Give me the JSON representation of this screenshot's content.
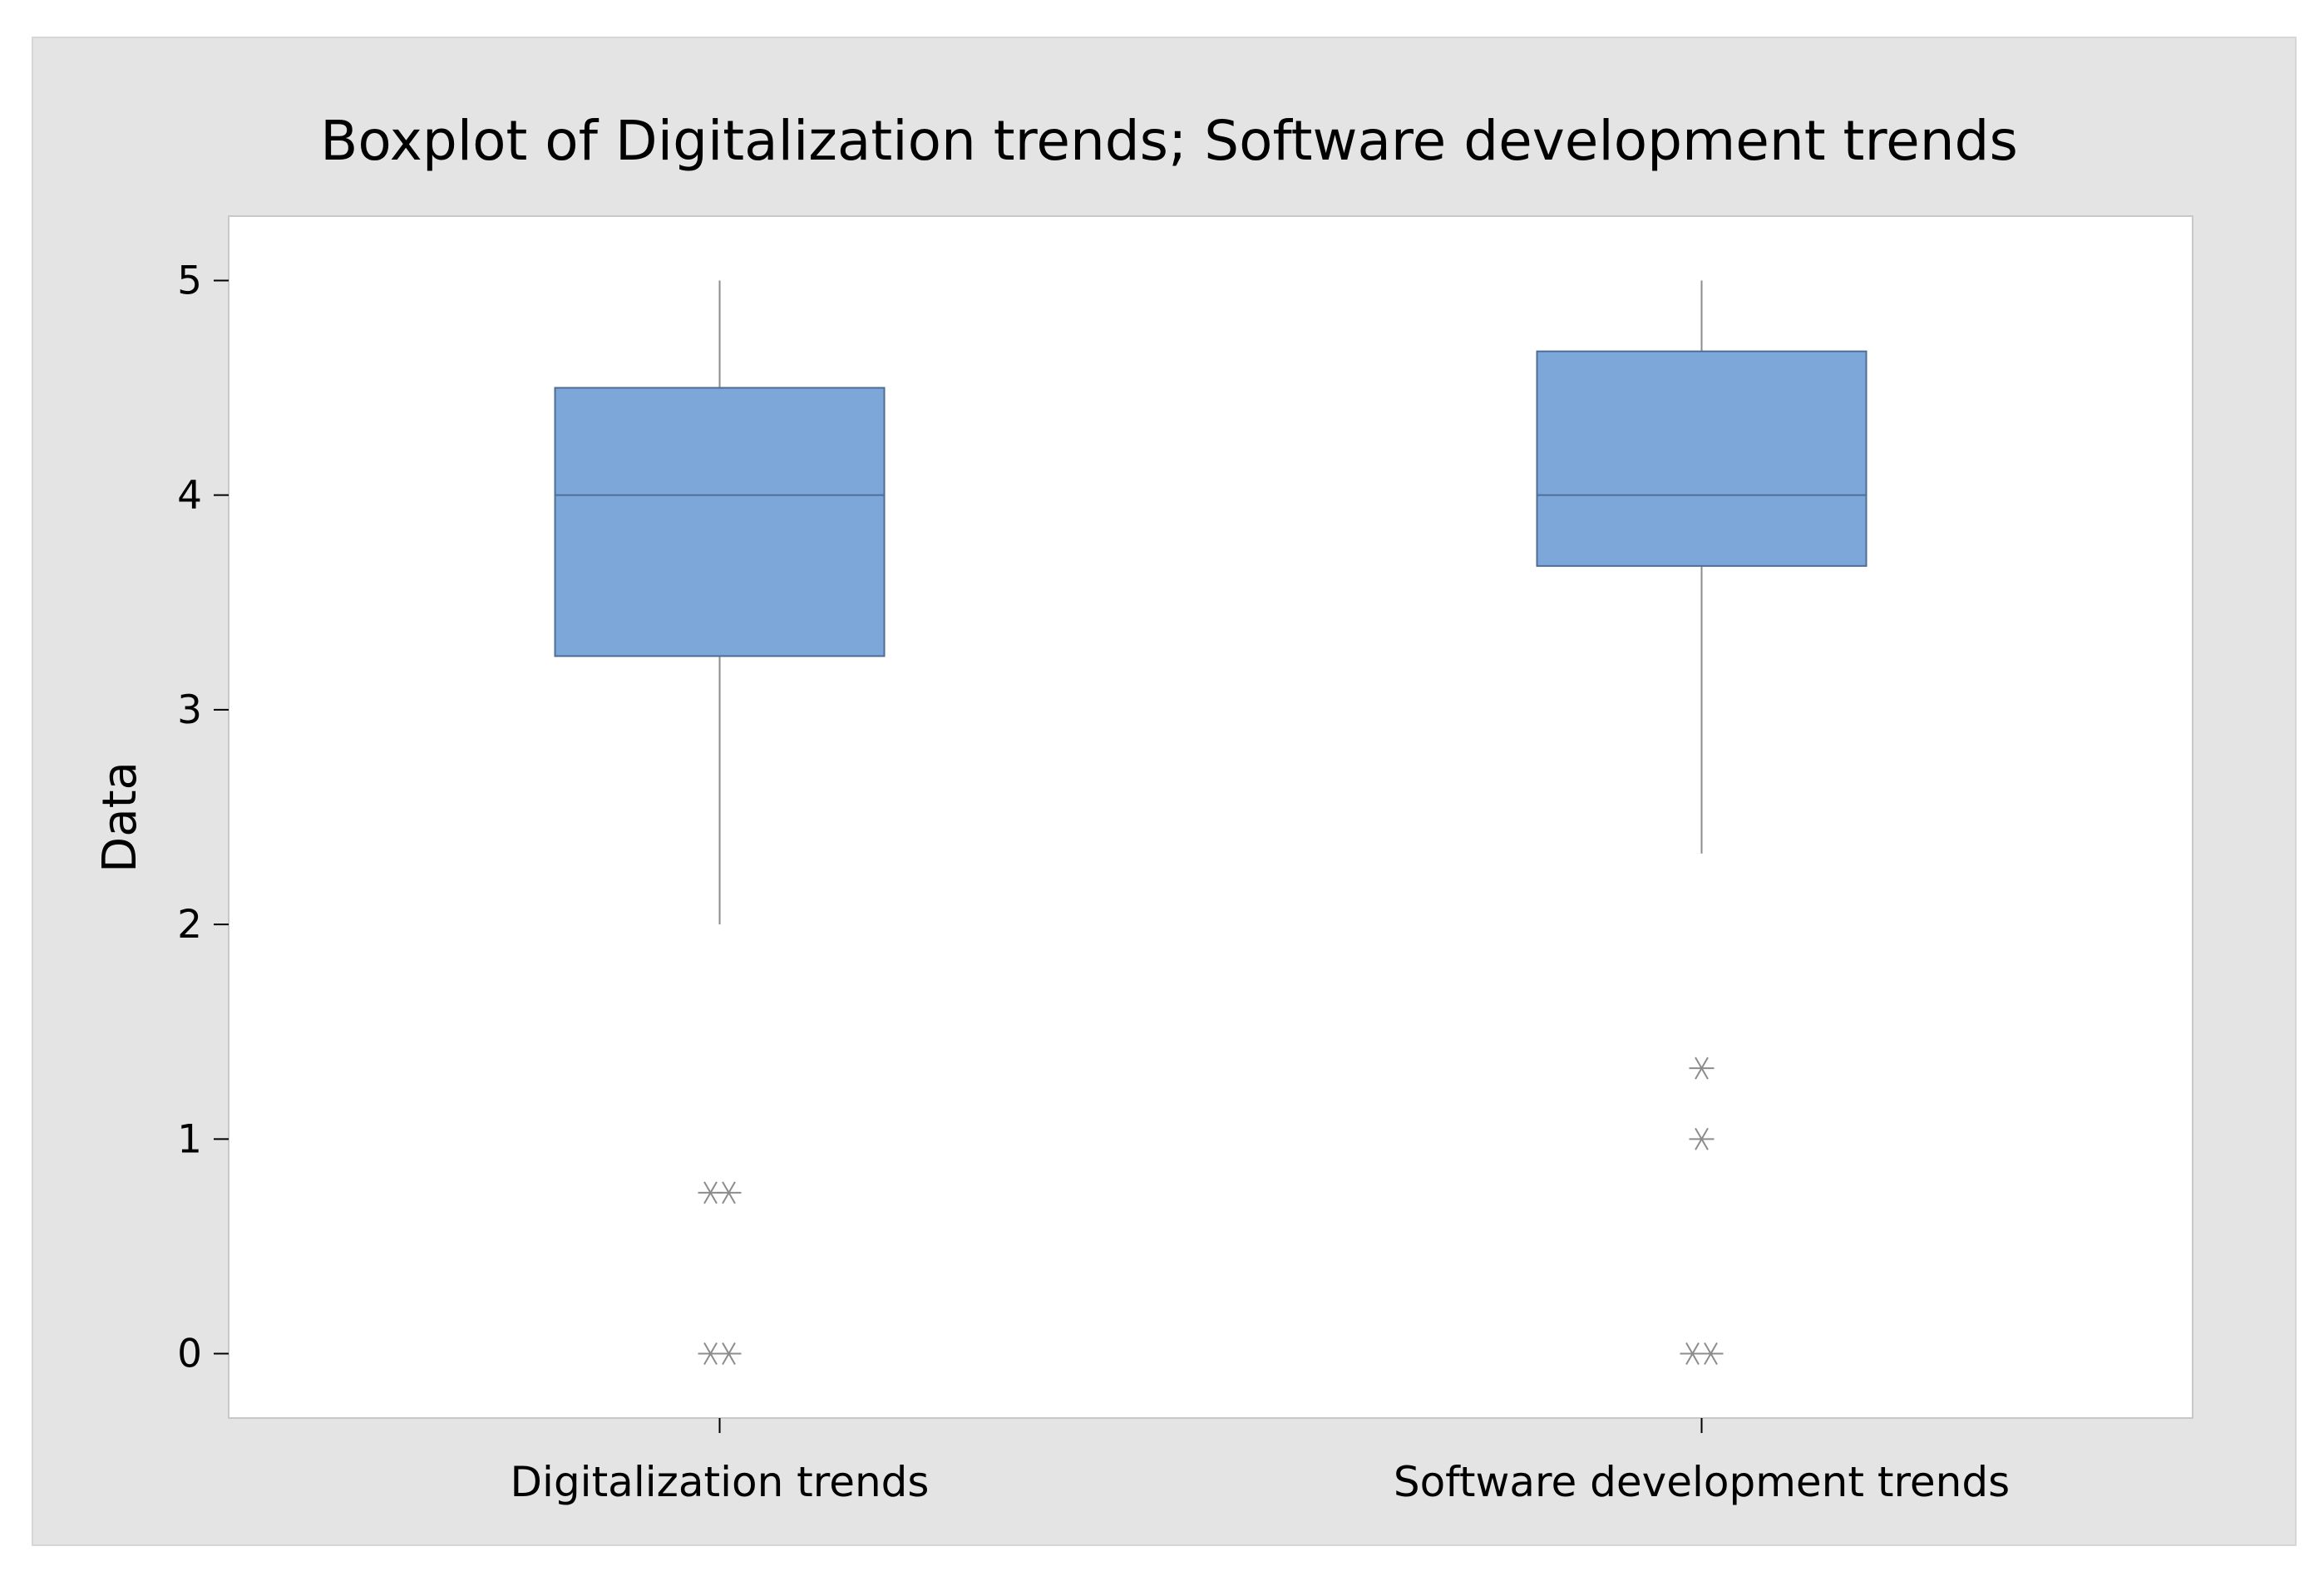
{
  "chart_data": {
    "type": "boxplot",
    "title": "Boxplot of Digitalization trends; Software development trends",
    "xlabel": "",
    "ylabel": "Data",
    "ylim": [
      -0.3,
      5.3
    ],
    "yticks": [
      "0",
      "1",
      "2",
      "3",
      "4",
      "5"
    ],
    "grid": false,
    "colors": {
      "box_fill": "#7da7d9",
      "box_stroke": "#4f6e96",
      "whisker": "#8c8c8c",
      "outlier": "#8c8c8c",
      "plot_bg": "#ffffff",
      "frame_bg": "#e4e4e4"
    },
    "series": [
      {
        "name": "Digitalization trends",
        "whisker_low": 2.0,
        "q1": 3.25,
        "median": 4.0,
        "q3": 4.5,
        "whisker_high": 5.0,
        "outliers": [
          0.75,
          0.75,
          0.0,
          0.0
        ]
      },
      {
        "name": "Software development trends",
        "whisker_low": 2.33,
        "q1": 3.67,
        "median": 4.0,
        "q3": 4.67,
        "whisker_high": 5.0,
        "outliers": [
          1.33,
          1.0,
          0.0,
          0.0
        ]
      }
    ]
  }
}
